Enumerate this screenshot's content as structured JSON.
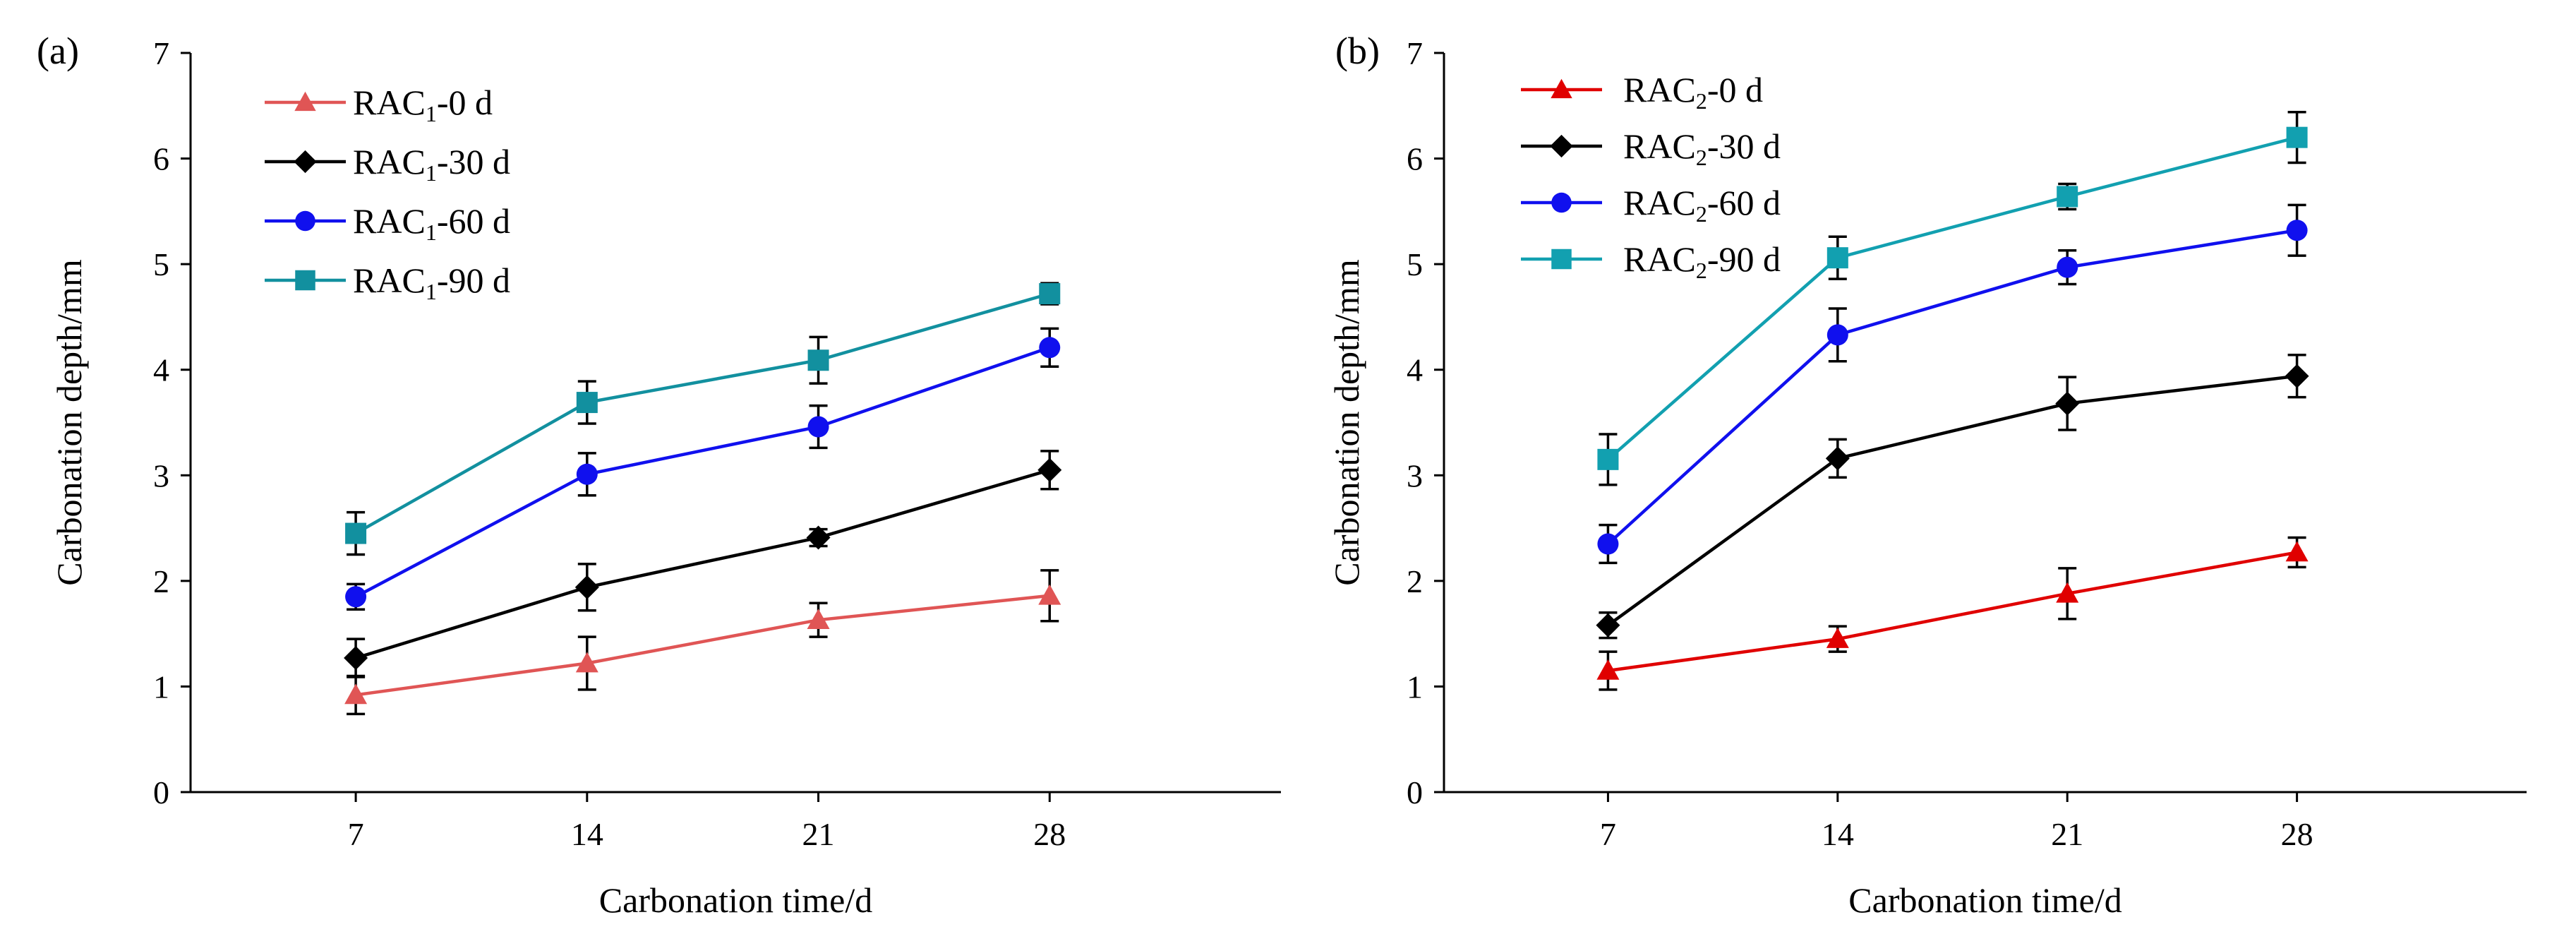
{
  "chart_data": [
    {
      "type": "line",
      "panel_label": "(a)",
      "title": "",
      "xlabel": "Carbonation time/d",
      "ylabel": "Carbonation depth/mm",
      "x": [
        7,
        14,
        21,
        28
      ],
      "x_tick_labels": [
        "7",
        "14",
        "21",
        "28"
      ],
      "xlim": [
        2,
        35
      ],
      "ylim": [
        0,
        7
      ],
      "y_ticks": [
        0,
        1,
        2,
        3,
        4,
        5,
        6,
        7
      ],
      "grid": false,
      "legend_position": "top-left",
      "series": [
        {
          "name": "RAC1-0 d",
          "label_base": "RAC",
          "label_sub": "1",
          "label_tail": "-0 d",
          "color": "#e05555",
          "marker": "triangle",
          "values": [
            0.92,
            1.22,
            1.63,
            1.86
          ],
          "errors": [
            0.18,
            0.25,
            0.16,
            0.24
          ]
        },
        {
          "name": "RAC1-30 d",
          "label_base": "RAC",
          "label_sub": "1",
          "label_tail": "-30 d",
          "color": "#000000",
          "marker": "diamond",
          "values": [
            1.27,
            1.94,
            2.41,
            3.05
          ],
          "errors": [
            0.18,
            0.22,
            0.08,
            0.18
          ]
        },
        {
          "name": "RAC1-60 d",
          "label_base": "RAC",
          "label_sub": "1",
          "label_tail": "-60 d",
          "color": "#1010ee",
          "marker": "circle",
          "values": [
            1.85,
            3.01,
            3.46,
            4.21
          ],
          "errors": [
            0.12,
            0.2,
            0.2,
            0.18
          ]
        },
        {
          "name": "RAC1-90 d",
          "label_base": "RAC",
          "label_sub": "1",
          "label_tail": "-90 d",
          "color": "#12909f",
          "marker": "square",
          "values": [
            2.45,
            3.69,
            4.09,
            4.72
          ],
          "errors": [
            0.2,
            0.2,
            0.22,
            0.1
          ]
        }
      ]
    },
    {
      "type": "line",
      "panel_label": "(b)",
      "title": "",
      "xlabel": "Carbonation time/d",
      "ylabel": "Carbonation depth/mm",
      "x": [
        7,
        14,
        21,
        28
      ],
      "x_tick_labels": [
        "7",
        "14",
        "21",
        "28"
      ],
      "xlim": [
        2,
        35
      ],
      "ylim": [
        0,
        7
      ],
      "y_ticks": [
        0,
        1,
        2,
        3,
        4,
        5,
        6,
        7
      ],
      "grid": false,
      "legend_position": "top-left",
      "series": [
        {
          "name": "RAC2-0 d",
          "label_base": "RAC",
          "label_sub": "2",
          "label_tail": "-0 d",
          "color": "#e00000",
          "marker": "triangle",
          "values": [
            1.15,
            1.45,
            1.88,
            2.27
          ],
          "errors": [
            0.18,
            0.12,
            0.24,
            0.14
          ]
        },
        {
          "name": "RAC2-30 d",
          "label_base": "RAC",
          "label_sub": "2",
          "label_tail": "-30 d",
          "color": "#000000",
          "marker": "diamond",
          "values": [
            1.58,
            3.16,
            3.68,
            3.94
          ],
          "errors": [
            0.12,
            0.18,
            0.25,
            0.2
          ]
        },
        {
          "name": "RAC2-60 d",
          "label_base": "RAC",
          "label_sub": "2",
          "label_tail": "-60 d",
          "color": "#1010ee",
          "marker": "circle",
          "values": [
            2.35,
            4.33,
            4.97,
            5.32
          ],
          "errors": [
            0.18,
            0.25,
            0.16,
            0.24
          ]
        },
        {
          "name": "RAC2-90 d",
          "label_base": "RAC",
          "label_sub": "2",
          "label_tail": "-90 d",
          "color": "#12a0b0",
          "marker": "square",
          "values": [
            3.15,
            5.06,
            5.64,
            6.2
          ],
          "errors": [
            0.24,
            0.2,
            0.12,
            0.24
          ]
        }
      ]
    }
  ]
}
